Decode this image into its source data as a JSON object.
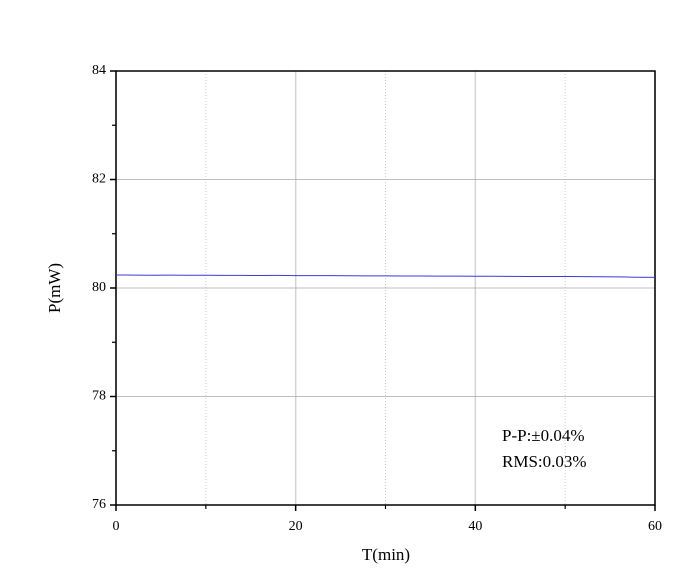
{
  "chart_data": {
    "type": "line",
    "xlabel": "T(min)",
    "ylabel": "P(mW)",
    "x": [
      0,
      2,
      4,
      6,
      8,
      10,
      12,
      14,
      16,
      18,
      20,
      22,
      24,
      26,
      28,
      30,
      32,
      34,
      36,
      38,
      40,
      42,
      44,
      46,
      48,
      50,
      52,
      54,
      56,
      58,
      60
    ],
    "series": [
      {
        "color": "#3b3bd6",
        "values": [
          80.24,
          80.238,
          80.236,
          80.237,
          80.235,
          80.234,
          80.233,
          80.232,
          80.231,
          80.232,
          80.229,
          80.228,
          80.227,
          80.226,
          80.224,
          80.223,
          80.222,
          80.221,
          80.22,
          80.218,
          80.217,
          80.216,
          80.214,
          80.213,
          80.212,
          80.211,
          80.209,
          80.207,
          80.206,
          80.198,
          80.195
        ]
      }
    ],
    "xlim": [
      0,
      60
    ],
    "xticks": [
      0,
      20,
      40,
      60
    ],
    "xminorticks": [
      10,
      30,
      50
    ],
    "ylim": [
      76,
      84
    ],
    "yticks": [
      76,
      78,
      80,
      82,
      84
    ],
    "yminorticks": [
      77,
      79,
      81,
      83
    ],
    "grid": true,
    "annotations": [
      "P-P:±0.04%",
      "RMS:0.03%"
    ]
  }
}
